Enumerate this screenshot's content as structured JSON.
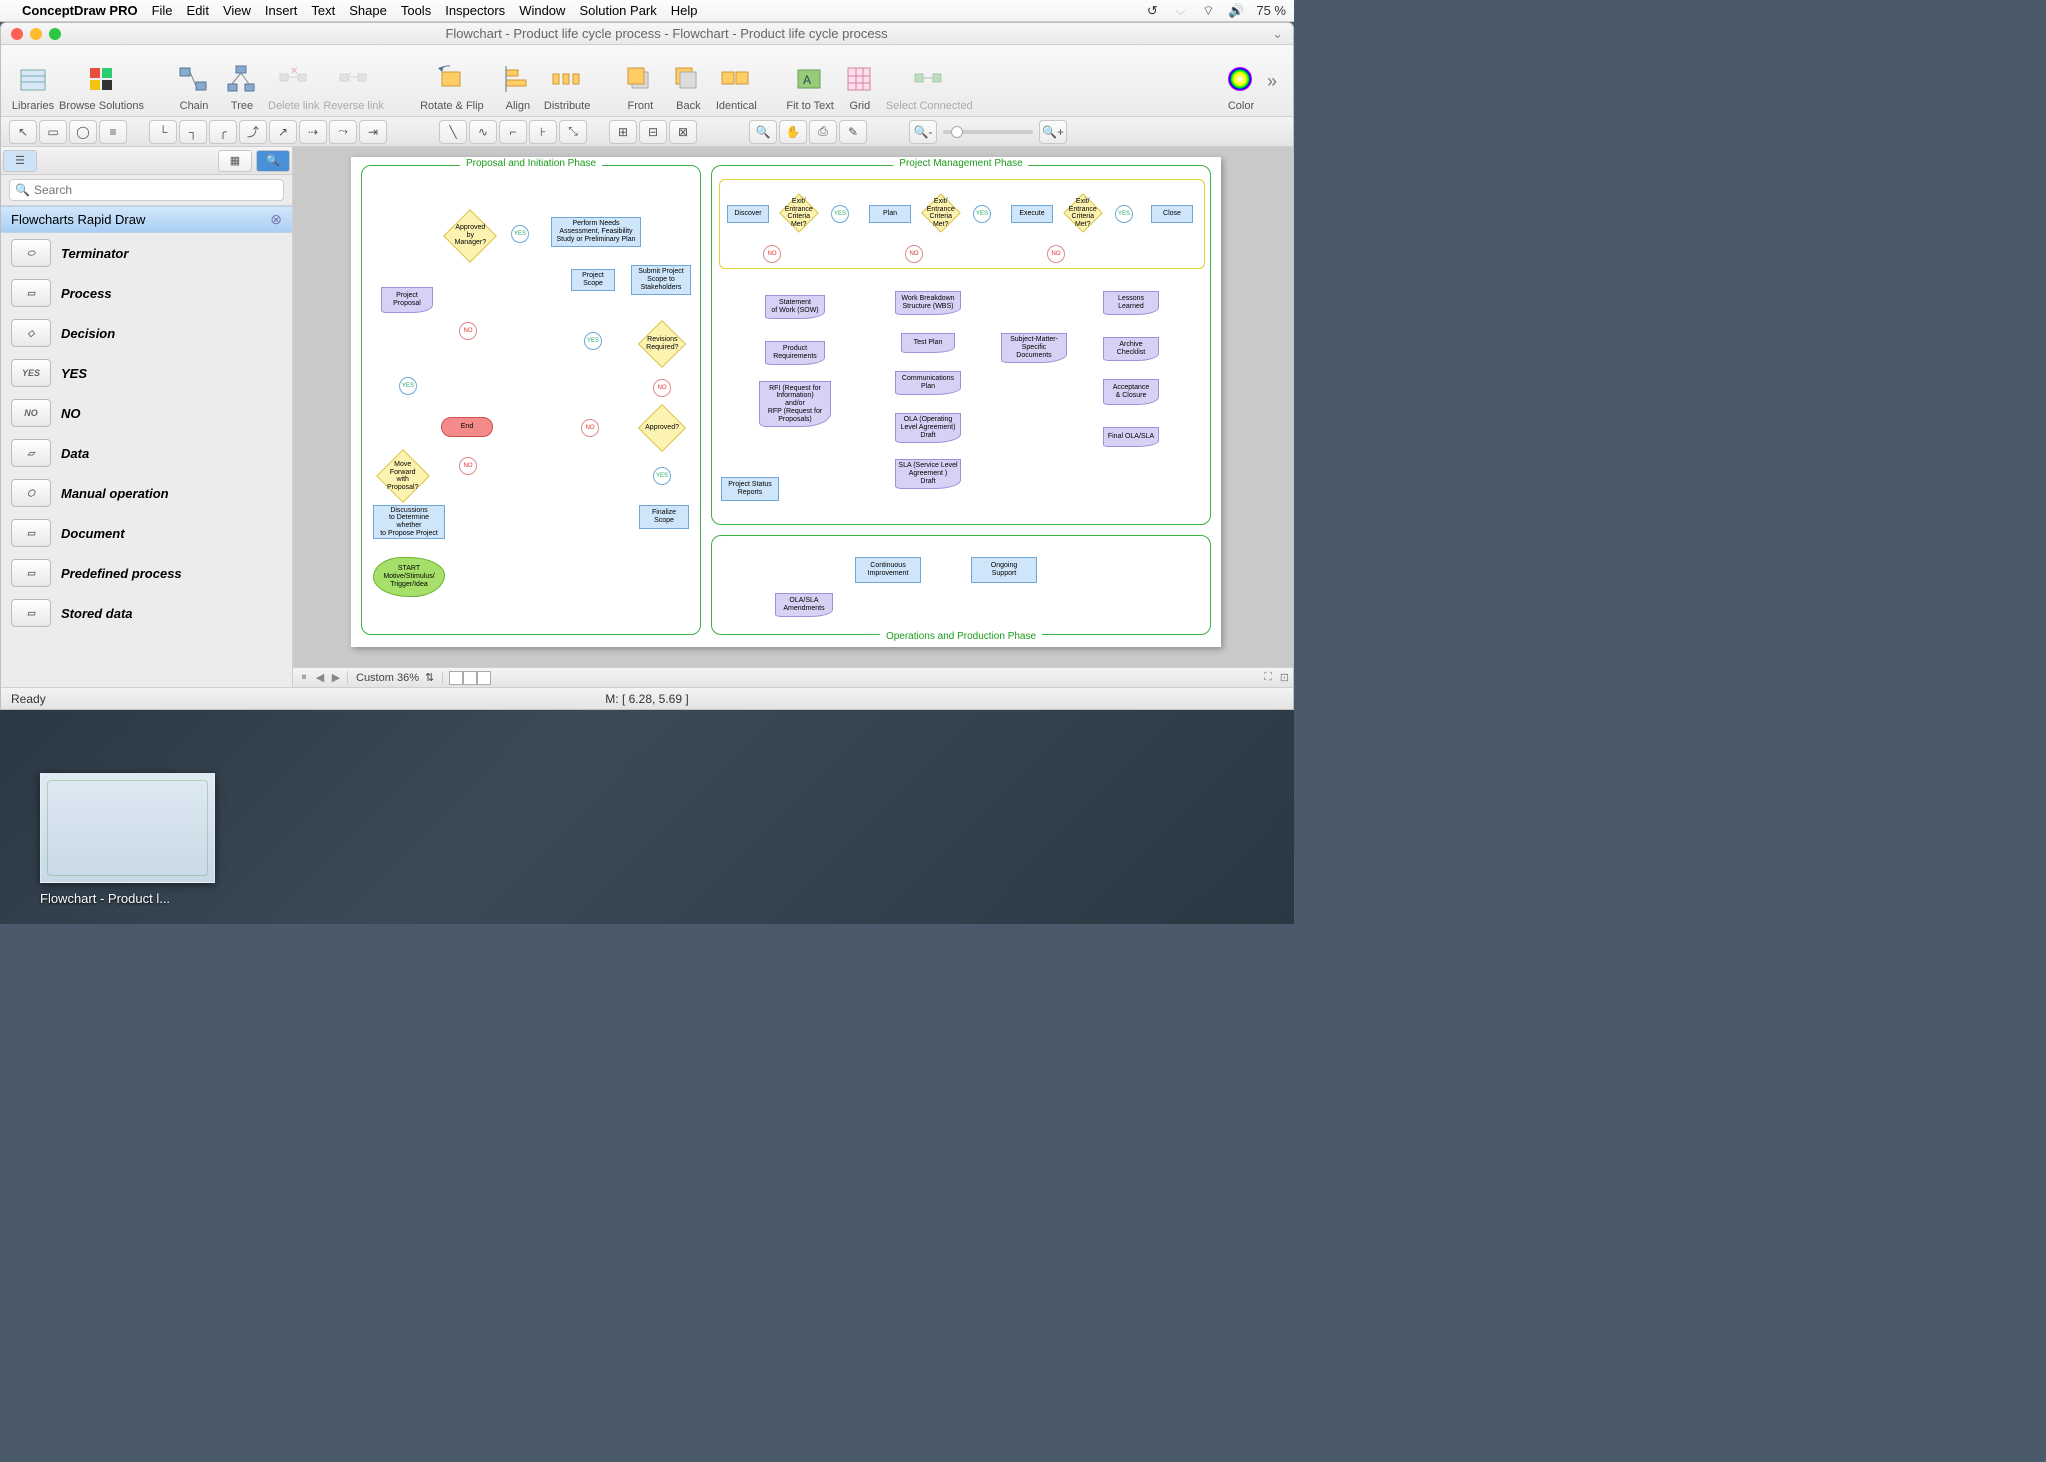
{
  "menubar": {
    "app": "ConceptDraw PRO",
    "items": [
      "File",
      "Edit",
      "View",
      "Insert",
      "Text",
      "Shape",
      "Tools",
      "Inspectors",
      "Window",
      "Solution Park",
      "Help"
    ],
    "battery": "75 %"
  },
  "window": {
    "title": "Flowchart - Product life cycle process - Flowchart - Product life cycle process"
  },
  "toolbar": {
    "libraries": "Libraries",
    "browse": "Browse Solutions",
    "chain": "Chain",
    "tree": "Tree",
    "deletelink": "Delete link",
    "reverselink": "Reverse link",
    "rotateflip": "Rotate & Flip",
    "align": "Align",
    "distribute": "Distribute",
    "front": "Front",
    "back": "Back",
    "identical": "Identical",
    "fittotext": "Fit to Text",
    "grid": "Grid",
    "selectconnected": "Select Connected",
    "color": "Color"
  },
  "sidebar": {
    "search_placeholder": "Search",
    "lib_title": "Flowcharts Rapid Draw",
    "items": [
      {
        "label": "Terminator",
        "shape": "⬭"
      },
      {
        "label": "Process",
        "shape": "▭"
      },
      {
        "label": "Decision",
        "shape": "◇"
      },
      {
        "label": "YES",
        "shape": "YES"
      },
      {
        "label": "NO",
        "shape": "NO"
      },
      {
        "label": "Data",
        "shape": "▱"
      },
      {
        "label": "Manual operation",
        "shape": "⬡"
      },
      {
        "label": "Document",
        "shape": "▭"
      },
      {
        "label": "Predefined process",
        "shape": "▭"
      },
      {
        "label": "Stored data",
        "shape": "▭"
      }
    ]
  },
  "flowchart": {
    "phases": {
      "proposal": "Proposal and Initiation Phase",
      "pm": "Project Management Phase",
      "ops": "Operations and Production Phase"
    },
    "shapes": {
      "start": "START\nMotive/Stimulus/\nTrigger/Idea",
      "discussions": "Discussions\nto Determine whether\nto Propose Project",
      "moveforward": "Move Forward\nwith Proposal?",
      "projproposal": "Project\nProposal",
      "approved_mgr": "Approved by\nManager?",
      "end": "End",
      "perform": "Perform Needs\nAssessment, Feasibility\nStudy or Preliminary Plan",
      "scope": "Project\nScope",
      "submit": "Submit Project\nScope to\nStakeholders",
      "revisions": "Revisions\nRequired?",
      "approved": "Approved?",
      "finalize": "Finalize\nScope",
      "discover": "Discover",
      "plan": "Plan",
      "execute": "Execute",
      "close": "Close",
      "exit": "Exit/\nEntrance\nCriteria\nMet?",
      "sow": "Statement\nof Work (SOW)",
      "prodreq": "Product\nRequirements",
      "rfi": "RFI (Request for\nInformation)\nand/or\nRFP (Request for\nProposals)",
      "status": "Project Status\nReports",
      "wbs": "Work Breakdown\nStructure (WBS)",
      "testplan": "Test Plan",
      "commplan": "Communications\nPlan",
      "ola": "OLA (Operating\nLevel Agreement)\nDraft",
      "sla": "SLA (Service Level\nAgreement )\nDraft",
      "sme": "Subject-Matter-\nSpecific\nDocuments",
      "lessons": "Lessons\nLearned",
      "archive": "Archive\nChecklist",
      "accept": "Acceptance\n& Closure",
      "final": "Final OLA/SLA",
      "ci": "Continuous\nImprovement",
      "support": "Ongoing\nSupport",
      "amend": "OLA/SLA\nAmendments"
    },
    "yn": {
      "yes": "YES",
      "no": "NO"
    }
  },
  "canvas": {
    "zoom_label": "Custom 36%"
  },
  "status": {
    "ready": "Ready",
    "coords": "M: [ 6.28, 5.69 ]"
  },
  "dock": {
    "thumb_label": "Flowchart - Product l..."
  },
  "colors": {
    "phase_border": "#3cb043",
    "proc_fill": "#cfe5fa",
    "dec_fill": "#fdf3b0",
    "doc_fill": "#d8d0f5",
    "term_fill": "#f48a8a",
    "cloud_fill": "#a6e06a"
  }
}
